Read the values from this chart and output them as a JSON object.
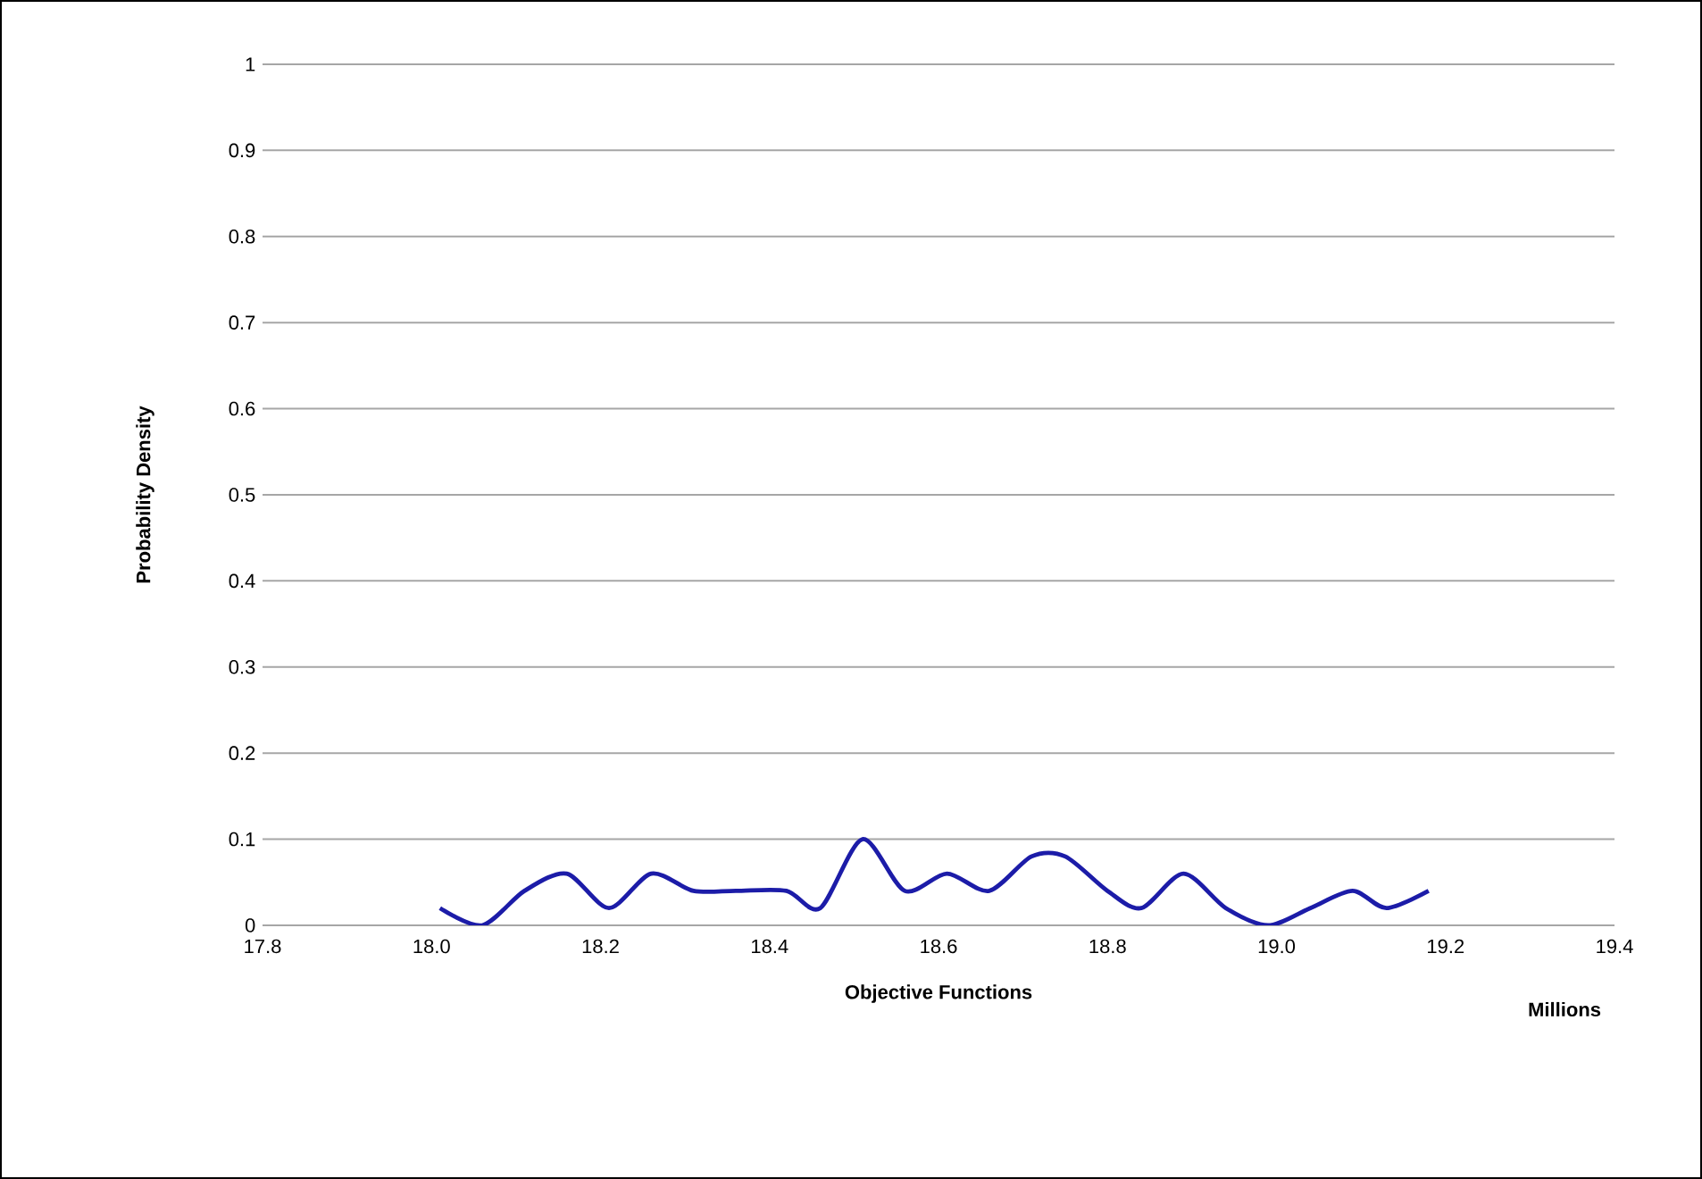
{
  "chart_data": {
    "type": "line",
    "xlabel": "Objective Functions",
    "ylabel": "Probability Density",
    "annotations": [
      "Millions"
    ],
    "xlim": [
      17.8,
      19.4
    ],
    "xticks": [
      {
        "value": 17.8,
        "label": "17.8"
      },
      {
        "value": 18.0,
        "label": "18.0"
      },
      {
        "value": 18.2,
        "label": "18.2"
      },
      {
        "value": 18.4,
        "label": "18.4"
      },
      {
        "value": 18.6,
        "label": "18.6"
      },
      {
        "value": 18.8,
        "label": "18.8"
      },
      {
        "value": 19.0,
        "label": "19.0"
      },
      {
        "value": 19.2,
        "label": "19.2"
      },
      {
        "value": 19.4,
        "label": "19.4"
      }
    ],
    "ylim": [
      0,
      1
    ],
    "yticks": [
      0,
      0.1,
      0.2,
      0.3,
      0.4,
      0.5,
      0.6,
      0.7,
      0.8,
      0.9,
      1
    ],
    "grid": "y",
    "marker": "none",
    "line_style": "solid",
    "series": [
      {
        "color": "#1c1ca8",
        "x": [
          18.01,
          18.06,
          18.11,
          18.16,
          18.21,
          18.26,
          18.31,
          18.36,
          18.42,
          18.46,
          18.51,
          18.56,
          18.61,
          18.66,
          18.71,
          18.75,
          18.8,
          18.84,
          18.89,
          18.94,
          18.99,
          19.04,
          19.09,
          19.13,
          19.18
        ],
        "values": [
          0.02,
          0,
          0.04,
          0.06,
          0.02,
          0.06,
          0.04,
          0.04,
          0.04,
          0.02,
          0.1,
          0.04,
          0.06,
          0.04,
          0.08,
          0.08,
          0.04,
          0.02,
          0.06,
          0.02,
          0,
          0.02,
          0.04,
          0.02,
          0.04
        ]
      }
    ]
  }
}
